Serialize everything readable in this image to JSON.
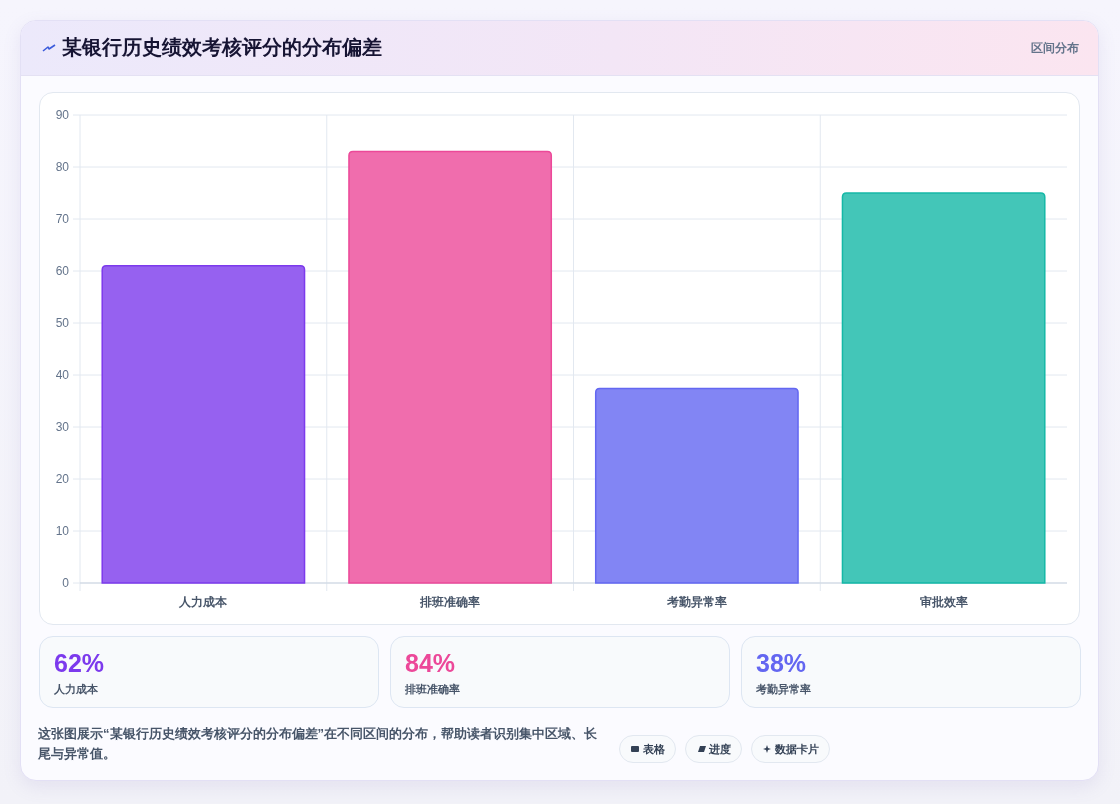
{
  "chart_data": [
    {
      "type": "bar",
      "title": "某银行历史绩效考核评分的分布偏差",
      "subtitle": "区间分布",
      "categories": [
        "人力成本",
        "排班准确率",
        "考勤异常率",
        "审批效率"
      ],
      "values": [
        61,
        83,
        37.4,
        75
      ],
      "colors": [
        "#9661f0",
        "#f06dad",
        "#8285f4",
        "#43c6b8"
      ],
      "ylim": [
        0,
        90
      ],
      "yticks": [
        0,
        10,
        20,
        30,
        40,
        50,
        60,
        70,
        80,
        90
      ],
      "grid": true,
      "annotations": [
        "这张图展示“某银行历史绩效考核评分的分布偏差”在不同区间的分布，帮助读者识别集中区域、长尾与异常值。",
        "表格",
        "进度",
        "数据卡片"
      ]
    },
    {
      "type": "other",
      "annotations": [
        "62%",
        "人力成本",
        "84%",
        "排班准确率",
        "38%",
        "考勤异常率"
      ],
      "colors": [
        "#7c3aed",
        "#ec4899",
        "#6366f1"
      ]
    }
  ]
}
